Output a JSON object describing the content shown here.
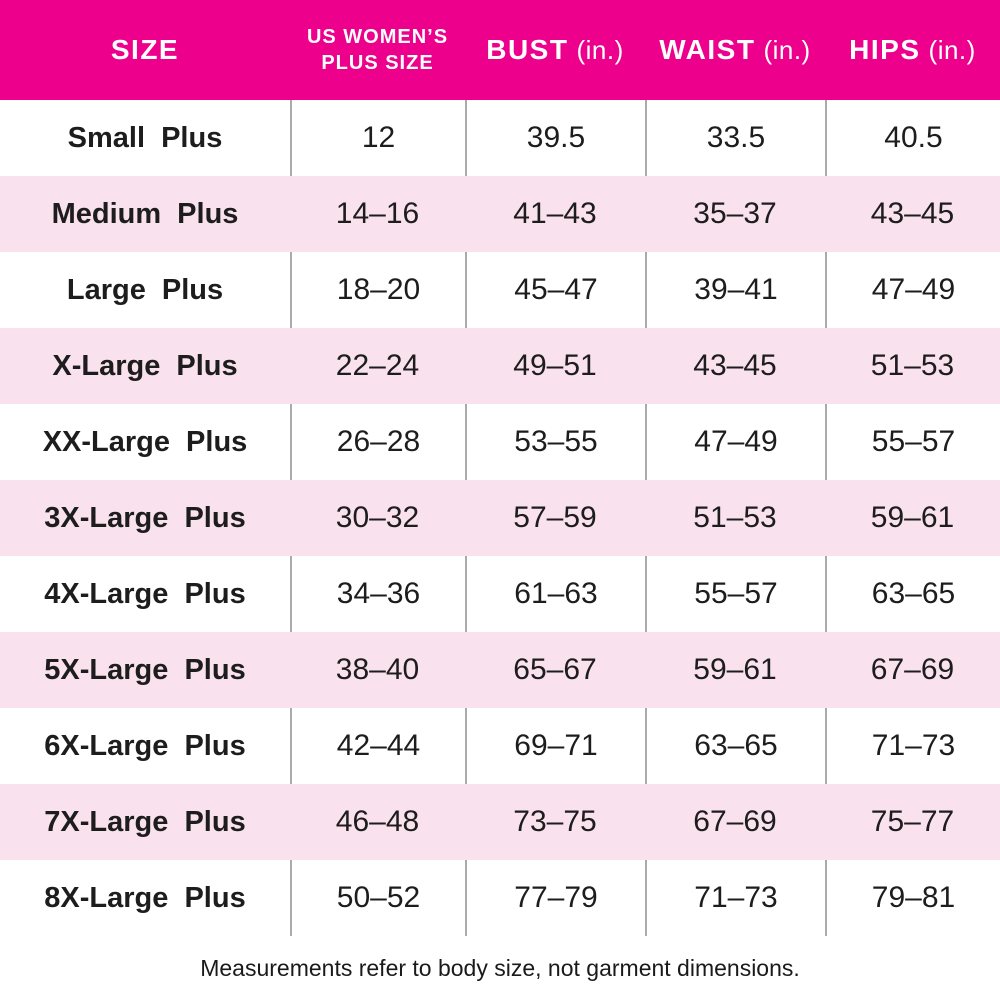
{
  "colors": {
    "header_bg": "#EC008C",
    "header_text": "#FFFFFF",
    "row_alt_bg": "#F9E1ED",
    "divider": "#ABABAB",
    "text": "#1D1D1D"
  },
  "header": {
    "size": "SIZE",
    "plus_size_line1": "US WOMEN’S",
    "plus_size_line2": "PLUS SIZE",
    "bust": "BUST",
    "bust_unit": "(in.)",
    "waist": "WAIST",
    "waist_unit": "(in.)",
    "hips": "HIPS",
    "hips_unit": "(in.)"
  },
  "chart_data": {
    "type": "table",
    "columns": [
      "SIZE",
      "US WOMEN’S PLUS SIZE",
      "BUST (in.)",
      "WAIST (in.)",
      "HIPS (in.)"
    ],
    "rows": [
      [
        "Small Plus",
        "12",
        "39.5",
        "33.5",
        "40.5"
      ],
      [
        "Medium Plus",
        "14–16",
        "41–43",
        "35–37",
        "43–45"
      ],
      [
        "Large Plus",
        "18–20",
        "45–47",
        "39–41",
        "47–49"
      ],
      [
        "X-Large Plus",
        "22–24",
        "49–51",
        "43–45",
        "51–53"
      ],
      [
        "XX-Large Plus",
        "26–28",
        "53–55",
        "47–49",
        "55–57"
      ],
      [
        "3X-Large Plus",
        "30–32",
        "57–59",
        "51–53",
        "59–61"
      ],
      [
        "4X-Large Plus",
        "34–36",
        "61–63",
        "55–57",
        "63–65"
      ],
      [
        "5X-Large Plus",
        "38–40",
        "65–67",
        "59–61",
        "67–69"
      ],
      [
        "6X-Large Plus",
        "42–44",
        "69–71",
        "63–65",
        "71–73"
      ],
      [
        "7X-Large Plus",
        "46–48",
        "73–75",
        "67–69",
        "75–77"
      ],
      [
        "8X-Large Plus",
        "50–52",
        "77–79",
        "71–73",
        "79–81"
      ]
    ]
  },
  "footer": {
    "note": "Measurements refer to body size, not garment dimensions."
  }
}
